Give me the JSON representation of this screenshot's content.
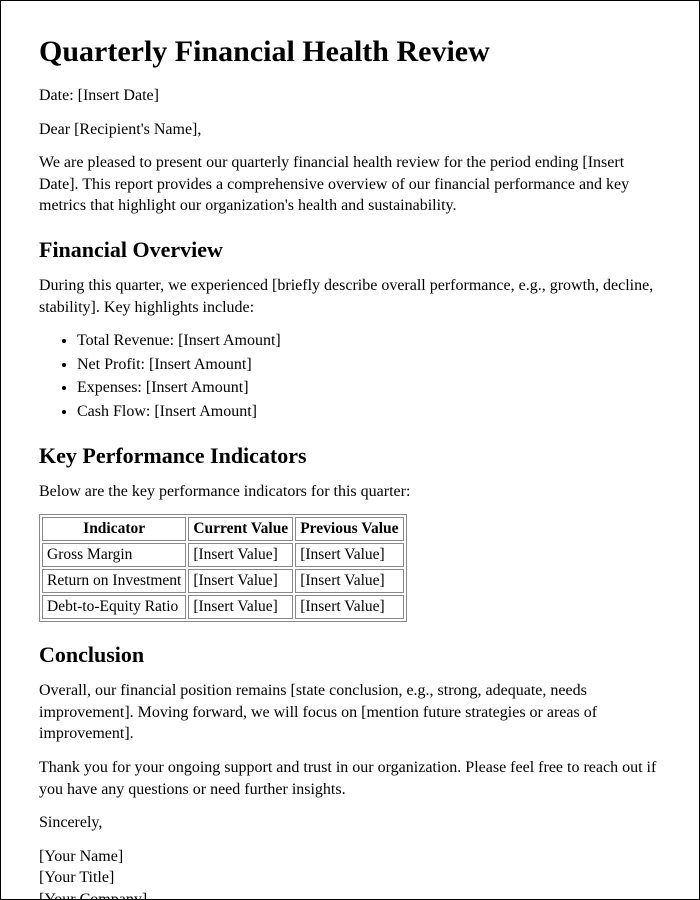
{
  "title": "Quarterly Financial Health Review",
  "date_line": "Date: [Insert Date]",
  "salutation": "Dear [Recipient's Name],",
  "intro": "We are pleased to present our quarterly financial health review for the period ending [Insert Date]. This report provides a comprehensive overview of our financial performance and key metrics that highlight our organization's health and sustainability.",
  "overview": {
    "heading": "Financial Overview",
    "paragraph": "During this quarter, we experienced [briefly describe overall performance, e.g., growth, decline, stability]. Key highlights include:",
    "items": [
      "Total Revenue: [Insert Amount]",
      "Net Profit: [Insert Amount]",
      "Expenses: [Insert Amount]",
      "Cash Flow: [Insert Amount]"
    ]
  },
  "kpi": {
    "heading": "Key Performance Indicators",
    "intro": "Below are the key performance indicators for this quarter:",
    "columns": [
      "Indicator",
      "Current Value",
      "Previous Value"
    ],
    "rows": [
      [
        "Gross Margin",
        "[Insert Value]",
        "[Insert Value]"
      ],
      [
        "Return on Investment",
        "[Insert Value]",
        "[Insert Value]"
      ],
      [
        "Debt-to-Equity Ratio",
        "[Insert Value]",
        "[Insert Value]"
      ]
    ]
  },
  "conclusion": {
    "heading": "Conclusion",
    "p1": "Overall, our financial position remains [state conclusion, e.g., strong, adequate, needs improvement]. Moving forward, we will focus on [mention future strategies or areas of improvement].",
    "p2": "Thank you for your ongoing support and trust in our organization. Please feel free to reach out if you have any questions or need further insights."
  },
  "closing": "Sincerely,",
  "signature": {
    "name": "[Your Name]",
    "title": "[Your Title]",
    "company": "[Your Company]"
  }
}
